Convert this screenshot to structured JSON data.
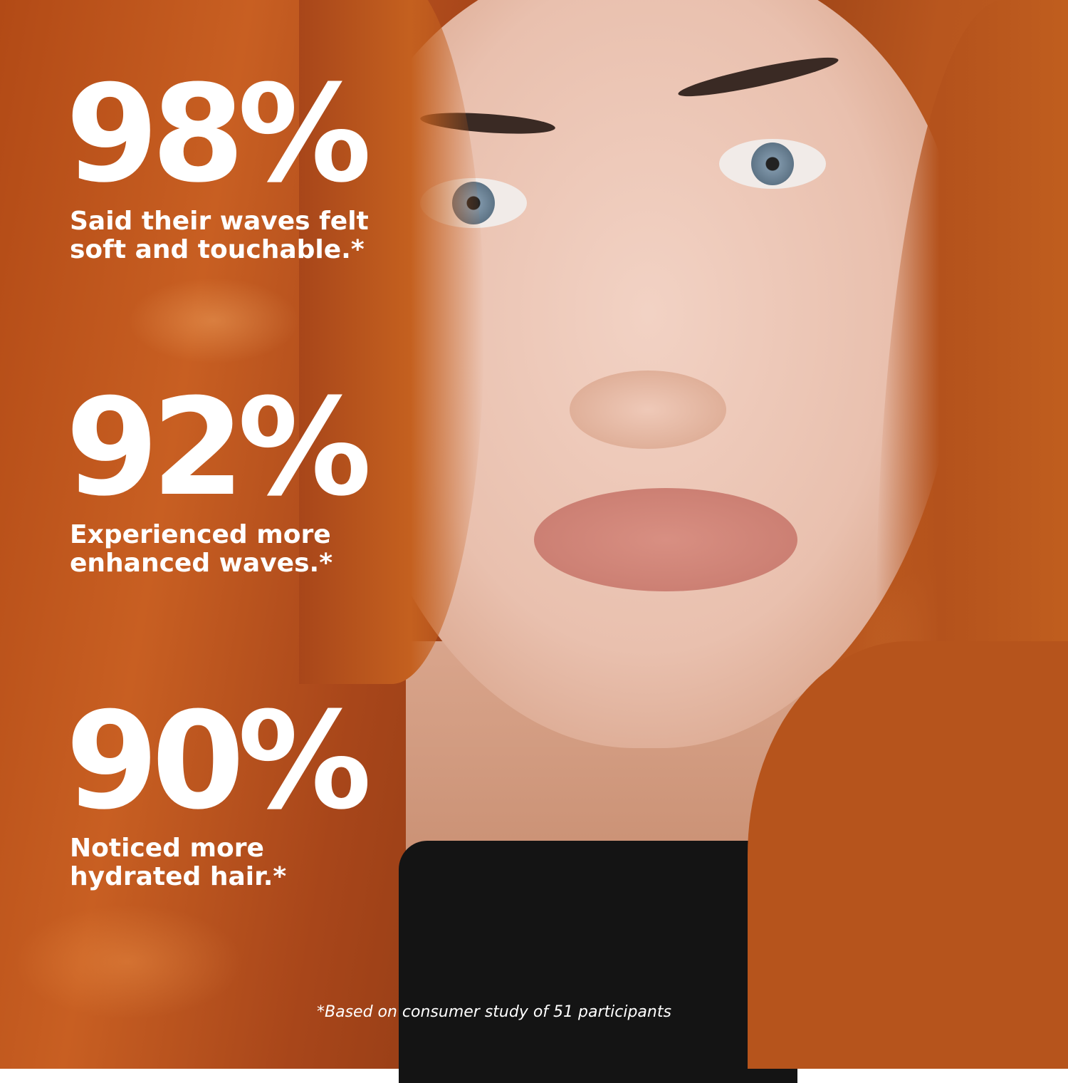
{
  "stats": [
    {
      "value": "98%",
      "caption_line1": "Said their waves felt",
      "caption_line2": "soft and touchable.*"
    },
    {
      "value": "92%",
      "caption_line1": "Experienced more",
      "caption_line2": "enhanced waves.*"
    },
    {
      "value": "90%",
      "caption_line1": "Noticed more",
      "caption_line2": "hydrated hair.*"
    }
  ],
  "footnote": "*Based on consumer study of 51 participants",
  "colors": {
    "text": "#ffffff",
    "hair": "#c25f20",
    "skin": "#ebc3b1"
  }
}
